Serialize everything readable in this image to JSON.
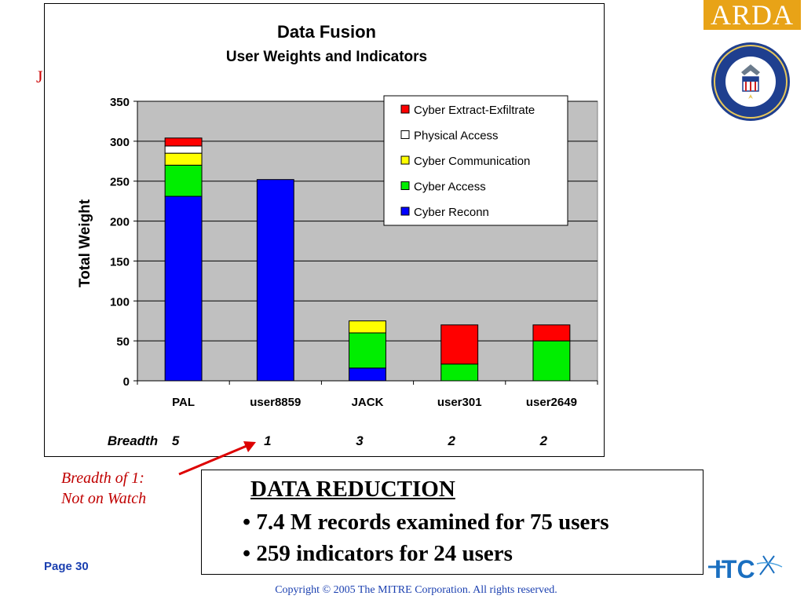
{
  "chart_data": {
    "type": "bar",
    "stacked": true,
    "title": "Data Fusion",
    "subtitle": "User Weights and Indicators",
    "ylabel": "Total Weight",
    "xlabel": "",
    "ylim": [
      0,
      350
    ],
    "yticks": [
      0,
      50,
      100,
      150,
      200,
      250,
      300,
      350
    ],
    "grid": true,
    "legend_position": "top-right",
    "categories": [
      "PAL",
      "user8859",
      "JACK",
      "user301",
      "user2649"
    ],
    "series": [
      {
        "name": "Cyber Reconn",
        "color": "#0000ff",
        "values": [
          231,
          252,
          16,
          0,
          0
        ]
      },
      {
        "name": "Cyber Access",
        "color": "#00ee00",
        "values": [
          39,
          0,
          44,
          21,
          50
        ]
      },
      {
        "name": "Cyber Communication",
        "color": "#ffff00",
        "values": [
          15,
          0,
          15,
          0,
          0
        ]
      },
      {
        "name": "Physical Access",
        "color": "#ffffff",
        "values": [
          9,
          0,
          0,
          0,
          0
        ]
      },
      {
        "name": "Cyber Extract-Exfiltrate",
        "color": "#ff0000",
        "values": [
          10,
          0,
          0,
          49,
          20
        ]
      }
    ],
    "legend_order": [
      "Cyber Extract-Exfiltrate",
      "Physical Access",
      "Cyber Communication",
      "Cyber Access",
      "Cyber Reconn"
    ],
    "breadth_label": "Breadth",
    "breadth": [
      5,
      1,
      3,
      2,
      2
    ],
    "plot_background": "#c0c0c0"
  },
  "logos": {
    "arda": "ARDA",
    "seal_icon": "agency-seal-icon",
    "itc": "ITC"
  },
  "marker": "J",
  "annotation": {
    "line1": "Breadth of 1:",
    "line2": "Not on Watch"
  },
  "reduction": {
    "title": "DATA REDUCTION",
    "bullet1": "• 7.4 M records examined for 75 users",
    "bullet2": "• 259 indicators for 24 users"
  },
  "footer": {
    "page": "Page 30",
    "copyright": "Copyright © 2005  The MITRE Corporation. All rights reserved."
  },
  "colors": {
    "annotation": "#c00000",
    "footer_blue": "#1a3fb0",
    "arda_gold": "#e8a317"
  }
}
